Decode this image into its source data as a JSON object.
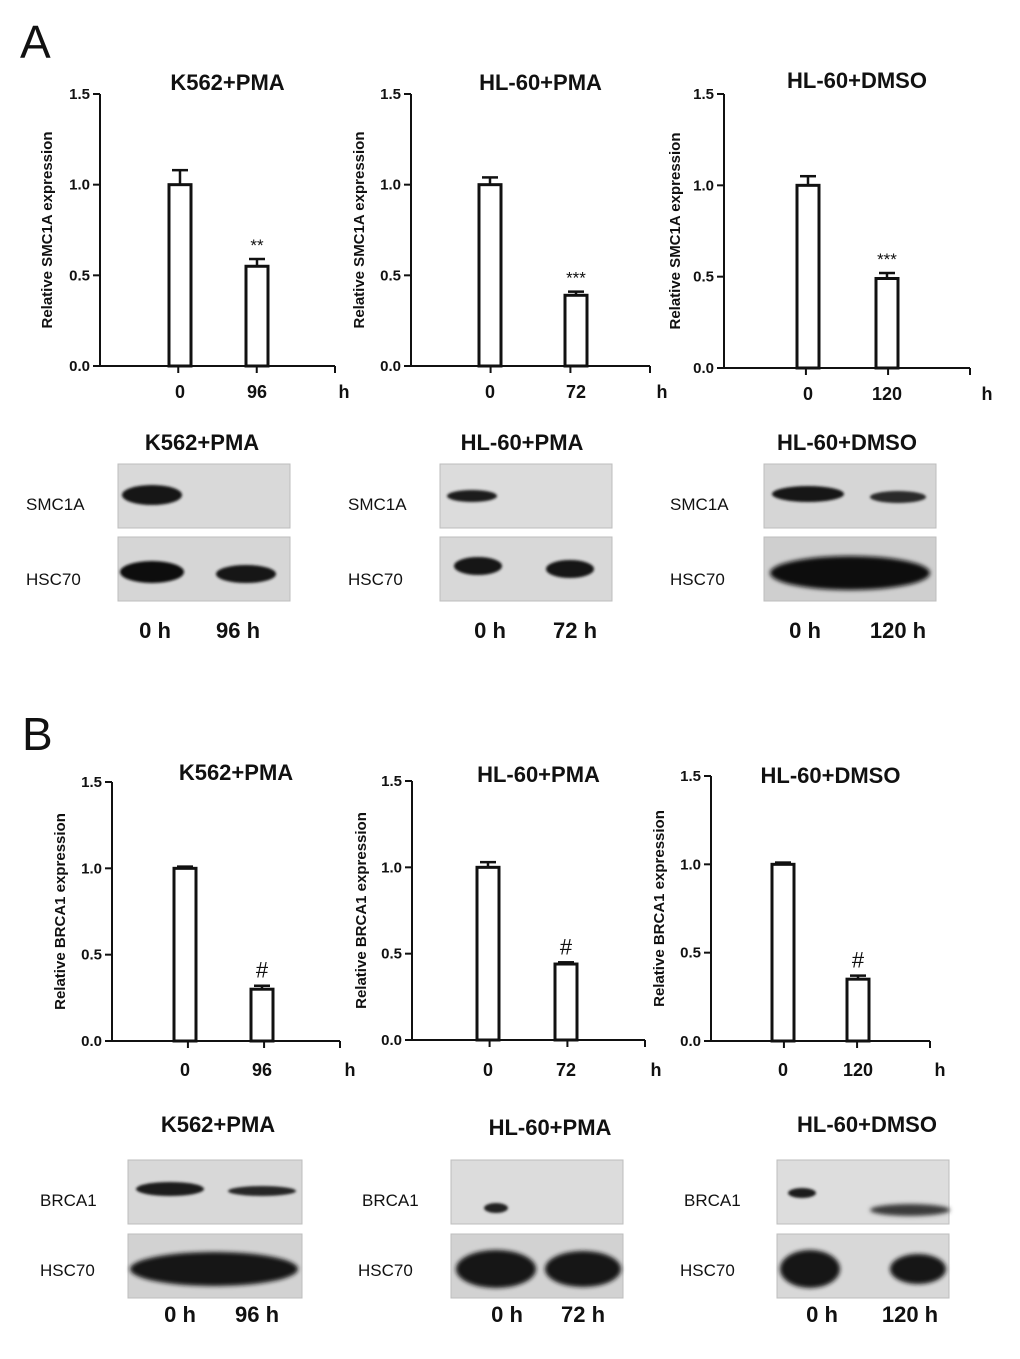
{
  "panels": [
    {
      "letter": "A",
      "charts": [
        {
          "title": "K562+PMA",
          "ylabel": "Relative SMC1A expression",
          "unit": "h",
          "categories": [
            "0",
            "96"
          ],
          "values": [
            1.0,
            0.55
          ],
          "errors": [
            0.08,
            0.04
          ],
          "sig": [
            "",
            "**"
          ]
        },
        {
          "title": "HL-60+PMA",
          "ylabel": "Relative SMC1A expression",
          "unit": "h",
          "categories": [
            "0",
            "72"
          ],
          "values": [
            1.0,
            0.39
          ],
          "errors": [
            0.04,
            0.02
          ],
          "sig": [
            "",
            "***"
          ]
        },
        {
          "title": "HL-60+DMSO",
          "ylabel": "Relative SMC1A expression",
          "unit": "h",
          "categories": [
            "0",
            "120"
          ],
          "values": [
            1.0,
            0.49
          ],
          "errors": [
            0.05,
            0.03
          ],
          "sig": [
            "",
            "***"
          ]
        }
      ],
      "blots": [
        {
          "title": "K562+PMA",
          "rows": [
            "SMC1A",
            "HSC70"
          ],
          "lanes": [
            "0 h",
            "96 h"
          ]
        },
        {
          "title": "HL-60+PMA",
          "rows": [
            "SMC1A",
            "HSC70"
          ],
          "lanes": [
            "0 h",
            "72 h"
          ]
        },
        {
          "title": "HL-60+DMSO",
          "rows": [
            "SMC1A",
            "HSC70"
          ],
          "lanes": [
            "0 h",
            "120 h"
          ]
        }
      ]
    },
    {
      "letter": "B",
      "charts": [
        {
          "title": "K562+PMA",
          "ylabel": "Relative BRCA1 expression",
          "unit": "h",
          "categories": [
            "0",
            "96"
          ],
          "values": [
            1.0,
            0.3
          ],
          "errors": [
            0.01,
            0.02
          ],
          "sig": [
            "",
            "#"
          ]
        },
        {
          "title": "HL-60+PMA",
          "ylabel": "Relative BRCA1 expression",
          "unit": "h",
          "categories": [
            "0",
            "72"
          ],
          "values": [
            1.0,
            0.44
          ],
          "errors": [
            0.03,
            0.01
          ],
          "sig": [
            "",
            "#"
          ]
        },
        {
          "title": "HL-60+DMSO",
          "ylabel": "Relative BRCA1 expression",
          "unit": "h",
          "categories": [
            "0",
            "120"
          ],
          "values": [
            1.0,
            0.35
          ],
          "errors": [
            0.01,
            0.02
          ],
          "sig": [
            "",
            "#"
          ]
        }
      ],
      "blots": [
        {
          "title": "K562+PMA",
          "rows": [
            "BRCA1",
            "HSC70"
          ],
          "lanes": [
            "0 h",
            "96 h"
          ]
        },
        {
          "title": "HL-60+PMA",
          "rows": [
            "BRCA1",
            "HSC70"
          ],
          "lanes": [
            "0 h",
            "72 h"
          ]
        },
        {
          "title": "HL-60+DMSO",
          "rows": [
            "BRCA1",
            "HSC70"
          ],
          "lanes": [
            "0 h",
            "120 h"
          ]
        }
      ]
    }
  ],
  "chart_data": [
    {
      "type": "bar",
      "title": "K562+PMA",
      "categories": [
        "0",
        "96"
      ],
      "values": [
        1.0,
        0.55
      ],
      "errors": [
        0.08,
        0.04
      ],
      "ylim": [
        0,
        1.5
      ],
      "yticks": [
        "0.0",
        "0.5",
        "1.0",
        "1.5"
      ],
      "ylabel": "Relative SMC1A expression",
      "xlabel": "h",
      "annotations": [
        "**"
      ]
    },
    {
      "type": "bar",
      "title": "HL-60+PMA",
      "categories": [
        "0",
        "72"
      ],
      "values": [
        1.0,
        0.39
      ],
      "errors": [
        0.04,
        0.02
      ],
      "ylim": [
        0,
        1.5
      ],
      "yticks": [
        "0.0",
        "0.5",
        "1.0",
        "1.5"
      ],
      "ylabel": "Relative SMC1A expression",
      "xlabel": "h",
      "annotations": [
        "***"
      ]
    },
    {
      "type": "bar",
      "title": "HL-60+DMSO",
      "categories": [
        "0",
        "120"
      ],
      "values": [
        1.0,
        0.49
      ],
      "errors": [
        0.05,
        0.03
      ],
      "ylim": [
        0,
        1.5
      ],
      "yticks": [
        "0.0",
        "0.5",
        "1.0",
        "1.5"
      ],
      "ylabel": "Relative SMC1A expression",
      "xlabel": "h",
      "annotations": [
        "***"
      ]
    },
    {
      "type": "bar",
      "title": "K562+PMA",
      "categories": [
        "0",
        "96"
      ],
      "values": [
        1.0,
        0.3
      ],
      "errors": [
        0.01,
        0.02
      ],
      "ylim": [
        0,
        1.5
      ],
      "yticks": [
        "0.0",
        "0.5",
        "1.0",
        "1.5"
      ],
      "ylabel": "Relative BRCA1 expression",
      "xlabel": "h",
      "annotations": [
        "#"
      ]
    },
    {
      "type": "bar",
      "title": "HL-60+PMA",
      "categories": [
        "0",
        "72"
      ],
      "values": [
        1.0,
        0.44
      ],
      "errors": [
        0.03,
        0.01
      ],
      "ylim": [
        0,
        1.5
      ],
      "yticks": [
        "0.0",
        "0.5",
        "1.0",
        "1.5"
      ],
      "ylabel": "Relative BRCA1 expression",
      "xlabel": "h",
      "annotations": [
        "#"
      ]
    },
    {
      "type": "bar",
      "title": "HL-60+DMSO",
      "categories": [
        "0",
        "120"
      ],
      "values": [
        1.0,
        0.35
      ],
      "errors": [
        0.01,
        0.02
      ],
      "ylim": [
        0,
        1.5
      ],
      "yticks": [
        "0.0",
        "0.5",
        "1.0",
        "1.5"
      ],
      "ylabel": "Relative BRCA1 expression",
      "xlabel": "h",
      "annotations": [
        "#"
      ]
    }
  ]
}
